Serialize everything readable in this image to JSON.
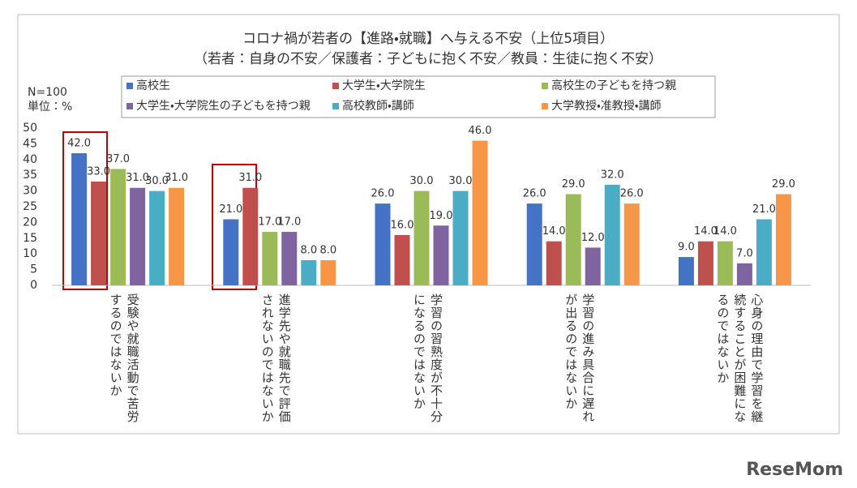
{
  "chart_data": {
    "type": "bar",
    "title": "コロナ禍が若者の【進路・就職】へ与える不安（上位5項目）",
    "subtitle": "（若者：自身の不安／保護者：子どもに抱く不安／教員：生徒に抱く不安）",
    "sample_note": "N=100",
    "unit_note": "単位：%",
    "categories": [
      "受験や就職活動で苦労するのではないか",
      "進学先や就職先で評価されないのではないか",
      "学習の習熟度が不十分になるのではないか",
      "学習の進み具合に遅れが出るのではないか",
      "心身の理由で学習を継続することが困難になるのではないか"
    ],
    "series": [
      {
        "name": "高校生",
        "color": "#4472c4",
        "values": [
          42,
          21,
          26,
          26,
          9
        ],
        "value_labels": [
          "42.0",
          "21.0",
          "26.0",
          "26.0",
          "9.0"
        ]
      },
      {
        "name": "大学生・大学院生",
        "color": "#c0504d",
        "values": [
          33,
          31,
          16,
          14,
          14
        ],
        "value_labels": [
          "33.0",
          "31.0",
          "16.0",
          "14.0",
          "14.0"
        ]
      },
      {
        "name": "高校生の子どもを持つ親",
        "color": "#9bbb59",
        "values": [
          37,
          17,
          30,
          29,
          14
        ],
        "value_labels": [
          "37.0",
          "17.0",
          "30.0",
          "29.0",
          "14.0"
        ]
      },
      {
        "name": "大学生・大学院生の子どもを持つ親",
        "color": "#8064a2",
        "values": [
          31,
          17,
          19,
          12,
          7
        ],
        "value_labels": [
          "31.0",
          "17.0",
          "19.0",
          "12.0",
          "7.0"
        ]
      },
      {
        "name": "高校教師・講師",
        "color": "#4bacc6",
        "values": [
          30,
          8,
          30,
          32,
          21
        ],
        "value_labels": [
          "30.0",
          "8.0",
          "30.0",
          "32.0",
          "21.0"
        ]
      },
      {
        "name": "大学教授・准教授・講師",
        "color": "#f79646",
        "values": [
          31,
          8,
          46,
          26,
          29
        ],
        "value_labels": [
          "31.0",
          "8.0",
          "46.0",
          "26.0",
          "29.0"
        ]
      }
    ],
    "ylim": [
      0,
      50
    ],
    "yticks": [
      0,
      5,
      10,
      15,
      20,
      25,
      30,
      35,
      40,
      45,
      50
    ],
    "grid": false
  },
  "watermark": "ReseMom"
}
